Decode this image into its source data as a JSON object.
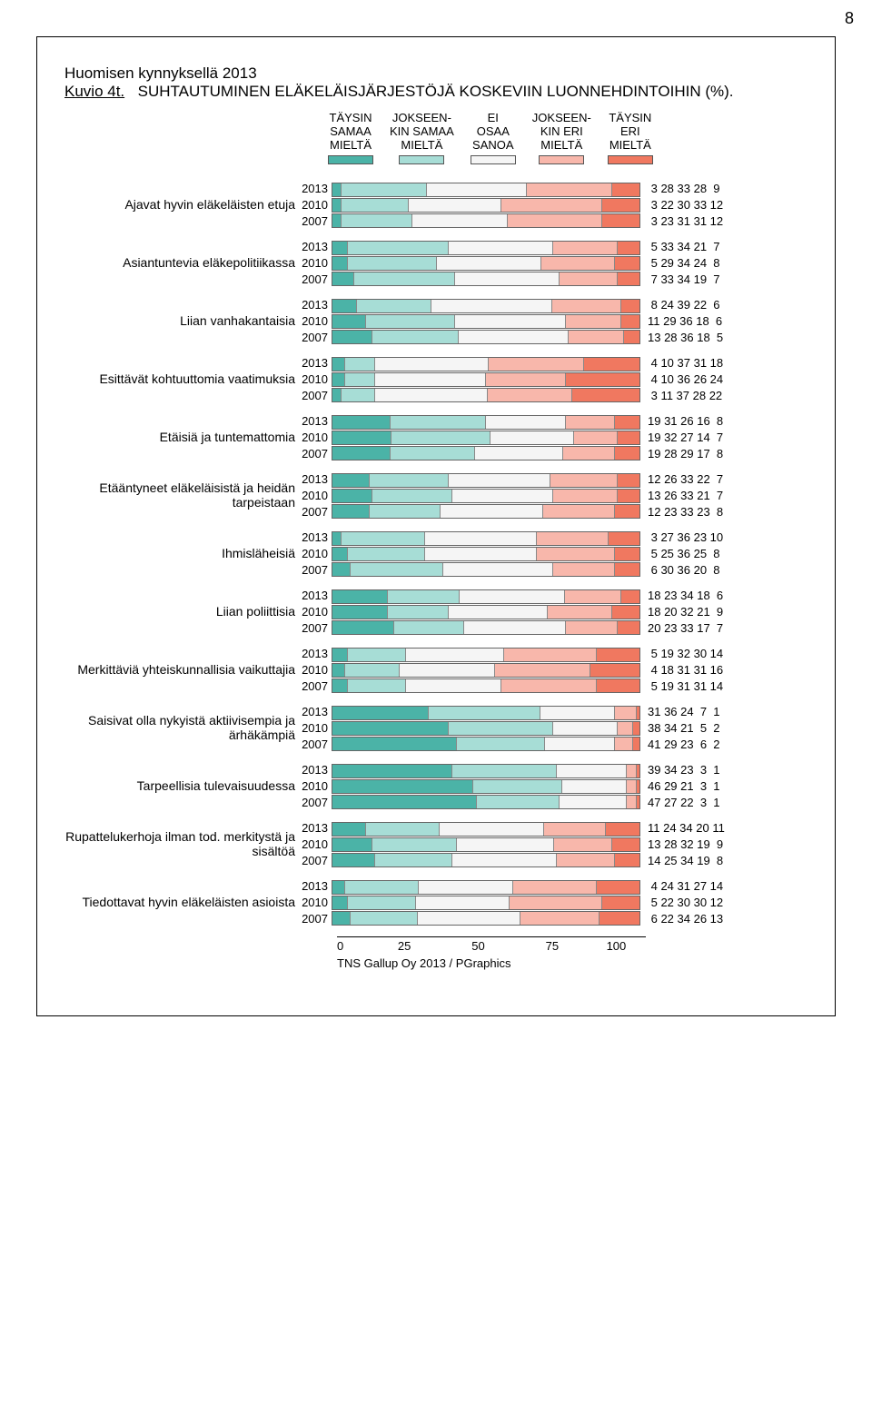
{
  "page_number": "8",
  "survey_title": "Huomisen kynnyksellä 2013",
  "kuvio_label": "Kuvio 4t.",
  "chart_title": "SUHTAUTUMINEN ELÄKELÄISJÄRJESTÖJÄ KOSKEVIIN LUONNEHDINTOIHIN (%).",
  "legend": [
    {
      "lines": [
        "TÄYSIN",
        "SAMAA",
        "MIELTÄ"
      ],
      "color": "#4bb3a7"
    },
    {
      "lines": [
        "JOKSEEN-",
        "KIN SAMAA",
        "MIELTÄ"
      ],
      "color": "#a7ddd6"
    },
    {
      "lines": [
        "EI",
        "OSAA",
        "SANOA"
      ],
      "color": "#f5f5f5"
    },
    {
      "lines": [
        "JOKSEEN-",
        "KIN ERI",
        "MIELTÄ"
      ],
      "color": "#f8b7ab"
    },
    {
      "lines": [
        "TÄYSIN",
        "ERI",
        "MIELTÄ"
      ],
      "color": "#f07860"
    }
  ],
  "colors": [
    "#4bb3a7",
    "#a7ddd6",
    "#f5f5f5",
    "#f8b7ab",
    "#f07860"
  ],
  "axis": {
    "ticks": [
      "0",
      "25",
      "50",
      "75",
      "100"
    ]
  },
  "footer": "TNS Gallup Oy 2013 / PGraphics",
  "groups": [
    {
      "label": "Ajavat hyvin eläkeläisten etuja",
      "rows": [
        {
          "year": "2013",
          "v": [
            3,
            28,
            33,
            28,
            9
          ]
        },
        {
          "year": "2010",
          "v": [
            3,
            22,
            30,
            33,
            12
          ]
        },
        {
          "year": "2007",
          "v": [
            3,
            23,
            31,
            31,
            12
          ]
        }
      ]
    },
    {
      "label": "Asiantuntevia eläkepolitiikassa",
      "rows": [
        {
          "year": "2013",
          "v": [
            5,
            33,
            34,
            21,
            7
          ]
        },
        {
          "year": "2010",
          "v": [
            5,
            29,
            34,
            24,
            8
          ]
        },
        {
          "year": "2007",
          "v": [
            7,
            33,
            34,
            19,
            7
          ]
        }
      ]
    },
    {
      "label": "Liian vanhakantaisia",
      "rows": [
        {
          "year": "2013",
          "v": [
            8,
            24,
            39,
            22,
            6
          ]
        },
        {
          "year": "2010",
          "v": [
            11,
            29,
            36,
            18,
            6
          ]
        },
        {
          "year": "2007",
          "v": [
            13,
            28,
            36,
            18,
            5
          ]
        }
      ]
    },
    {
      "label": "Esittävät kohtuuttomia vaatimuksia",
      "rows": [
        {
          "year": "2013",
          "v": [
            4,
            10,
            37,
            31,
            18
          ]
        },
        {
          "year": "2010",
          "v": [
            4,
            10,
            36,
            26,
            24
          ]
        },
        {
          "year": "2007",
          "v": [
            3,
            11,
            37,
            28,
            22
          ]
        }
      ]
    },
    {
      "label": "Etäisiä ja tuntemattomia",
      "rows": [
        {
          "year": "2013",
          "v": [
            19,
            31,
            26,
            16,
            8
          ]
        },
        {
          "year": "2010",
          "v": [
            19,
            32,
            27,
            14,
            7
          ]
        },
        {
          "year": "2007",
          "v": [
            19,
            28,
            29,
            17,
            8
          ]
        }
      ]
    },
    {
      "label": "Etääntyneet eläkeläisistä ja heidän tarpeistaan",
      "rows": [
        {
          "year": "2013",
          "v": [
            12,
            26,
            33,
            22,
            7
          ]
        },
        {
          "year": "2010",
          "v": [
            13,
            26,
            33,
            21,
            7
          ]
        },
        {
          "year": "2007",
          "v": [
            12,
            23,
            33,
            23,
            8
          ]
        }
      ]
    },
    {
      "label": "Ihmisläheisiä",
      "rows": [
        {
          "year": "2013",
          "v": [
            3,
            27,
            36,
            23,
            10
          ]
        },
        {
          "year": "2010",
          "v": [
            5,
            25,
            36,
            25,
            8
          ]
        },
        {
          "year": "2007",
          "v": [
            6,
            30,
            36,
            20,
            8
          ]
        }
      ]
    },
    {
      "label": "Liian poliittisia",
      "rows": [
        {
          "year": "2013",
          "v": [
            18,
            23,
            34,
            18,
            6
          ]
        },
        {
          "year": "2010",
          "v": [
            18,
            20,
            32,
            21,
            9
          ]
        },
        {
          "year": "2007",
          "v": [
            20,
            23,
            33,
            17,
            7
          ]
        }
      ]
    },
    {
      "label": "Merkittäviä yhteiskunnallisia vaikuttajia",
      "rows": [
        {
          "year": "2013",
          "v": [
            5,
            19,
            32,
            30,
            14
          ]
        },
        {
          "year": "2010",
          "v": [
            4,
            18,
            31,
            31,
            16
          ]
        },
        {
          "year": "2007",
          "v": [
            5,
            19,
            31,
            31,
            14
          ]
        }
      ]
    },
    {
      "label": "Saisivat olla nykyistä aktiivisempia ja ärhäkämpiä",
      "rows": [
        {
          "year": "2013",
          "v": [
            31,
            36,
            24,
            7,
            1
          ]
        },
        {
          "year": "2010",
          "v": [
            38,
            34,
            21,
            5,
            2
          ]
        },
        {
          "year": "2007",
          "v": [
            41,
            29,
            23,
            6,
            2
          ]
        }
      ]
    },
    {
      "label": "Tarpeellisia tulevaisuudessa",
      "rows": [
        {
          "year": "2013",
          "v": [
            39,
            34,
            23,
            3,
            1
          ]
        },
        {
          "year": "2010",
          "v": [
            46,
            29,
            21,
            3,
            1
          ]
        },
        {
          "year": "2007",
          "v": [
            47,
            27,
            22,
            3,
            1
          ]
        }
      ]
    },
    {
      "label": "Rupattelukerhoja ilman tod. merkitystä ja sisältöä",
      "rows": [
        {
          "year": "2013",
          "v": [
            11,
            24,
            34,
            20,
            11
          ]
        },
        {
          "year": "2010",
          "v": [
            13,
            28,
            32,
            19,
            9
          ]
        },
        {
          "year": "2007",
          "v": [
            14,
            25,
            34,
            19,
            8
          ]
        }
      ]
    },
    {
      "label": "Tiedottavat hyvin eläkeläisten asioista",
      "rows": [
        {
          "year": "2013",
          "v": [
            4,
            24,
            31,
            27,
            14
          ]
        },
        {
          "year": "2010",
          "v": [
            5,
            22,
            30,
            30,
            12
          ]
        },
        {
          "year": "2007",
          "v": [
            6,
            22,
            34,
            26,
            13
          ]
        }
      ]
    }
  ]
}
